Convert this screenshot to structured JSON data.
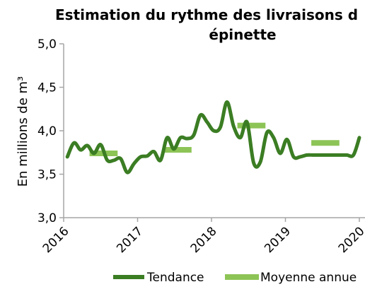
{
  "chart_data": {
    "type": "line",
    "title": "Estimation du rythme des livraisons d",
    "subtitle": "épinette",
    "xlabel": "",
    "ylabel": "En millions de m³",
    "xlim": [
      2016,
      2020
    ],
    "ylim": [
      3.0,
      5.0
    ],
    "x_ticks": [
      "2016",
      "2017",
      "2018",
      "2019",
      "2020"
    ],
    "y_ticks": [
      "3,0",
      "3,5",
      "4,0",
      "4,5",
      "5,0"
    ],
    "grid": false,
    "legend": {
      "placement": "bottom"
    },
    "series": [
      {
        "name": "Tendance",
        "color": "#3b7d23",
        "x": [
          2016.05,
          2016.14,
          2016.23,
          2016.32,
          2016.41,
          2016.5,
          2016.59,
          2016.68,
          2016.77,
          2016.86,
          2016.95,
          2017.04,
          2017.13,
          2017.22,
          2017.31,
          2017.4,
          2017.49,
          2017.58,
          2017.67,
          2017.76,
          2017.85,
          2017.94,
          2018.03,
          2018.12,
          2018.21,
          2018.3,
          2018.39,
          2018.48,
          2018.57,
          2018.66,
          2018.75,
          2018.84,
          2018.93,
          2019.02,
          2019.11,
          2019.2,
          2019.29,
          2019.38,
          2019.47,
          2019.56,
          2019.65,
          2019.74,
          2019.83,
          2019.92,
          2020.0
        ],
        "values": [
          3.7,
          3.86,
          3.78,
          3.83,
          3.74,
          3.84,
          3.66,
          3.66,
          3.68,
          3.52,
          3.62,
          3.7,
          3.71,
          3.76,
          3.66,
          3.92,
          3.79,
          3.92,
          3.91,
          3.95,
          4.18,
          4.1,
          4.0,
          4.04,
          4.33,
          4.05,
          3.92,
          4.1,
          3.63,
          3.64,
          3.98,
          3.92,
          3.74,
          3.9,
          3.7,
          3.7,
          3.72,
          3.72,
          3.72,
          3.72,
          3.72,
          3.72,
          3.72,
          3.72,
          3.92
        ]
      },
      {
        "name": "Moyenne annue",
        "color": "#8dc456",
        "segments": [
          {
            "x_start": 2016.35,
            "x_end": 2016.73,
            "value": 3.74
          },
          {
            "x_start": 2017.35,
            "x_end": 2017.73,
            "value": 3.78
          },
          {
            "x_start": 2018.35,
            "x_end": 2018.73,
            "value": 4.06
          },
          {
            "x_start": 2019.35,
            "x_end": 2019.73,
            "value": 3.86
          }
        ]
      }
    ]
  }
}
